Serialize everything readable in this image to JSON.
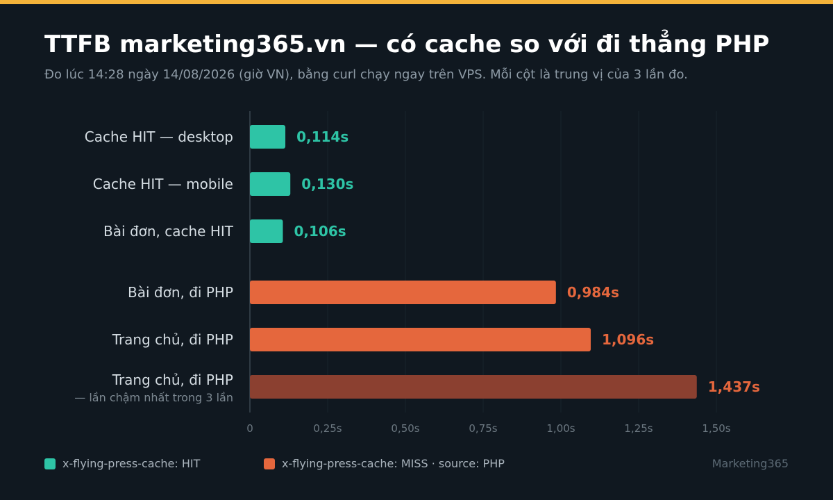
{
  "header": {
    "title": "TTFB marketing365.vn — có cache so với đi thẳng PHP",
    "subtitle": "Đo lúc 14:28 ngày 14/08/2026 (giờ VN), bằng curl chạy ngay trên VPS. Mỗi cột là trung vị của 3 lần đo."
  },
  "chart_data": {
    "type": "bar",
    "orientation": "horizontal",
    "categories": [
      "Cache HIT — desktop",
      "Cache HIT — mobile",
      "Bài đơn, cache HIT",
      "Bài đơn, đi PHP",
      "Trang chủ, đi PHP",
      "Trang chủ, đi PHP"
    ],
    "category_notes": [
      "",
      "",
      "",
      "",
      "",
      "— lần chậm nhất trong 3 lần"
    ],
    "values": [
      0.114,
      0.13,
      0.106,
      0.984,
      1.096,
      1.437
    ],
    "value_labels": [
      "0,114s",
      "0,130s",
      "0,106s",
      "0,984s",
      "1,096s",
      "1,437s"
    ],
    "bar_groups": [
      "hit",
      "hit",
      "hit",
      "miss",
      "miss",
      "miss-slowest"
    ],
    "xlim": [
      0,
      1.5
    ],
    "xticks": [
      0,
      0.25,
      0.5,
      0.75,
      1.0,
      1.25,
      1.5
    ],
    "xtick_labels": [
      "0",
      "0,25s",
      "0,50s",
      "0,75s",
      "1,00s",
      "1,25s",
      "1,50s"
    ],
    "grid": true,
    "colors": {
      "hit": "#2ec4a6",
      "miss": "#e5673d",
      "miss-slowest": "#8b4030",
      "miss-label": "#e5673d"
    }
  },
  "legend": {
    "items": [
      {
        "label": "x-flying-press-cache: HIT",
        "color": "#2ec4a6"
      },
      {
        "label": "x-flying-press-cache: MISS · source: PHP",
        "color": "#e5673d"
      }
    ]
  },
  "brand": "Marketing365"
}
